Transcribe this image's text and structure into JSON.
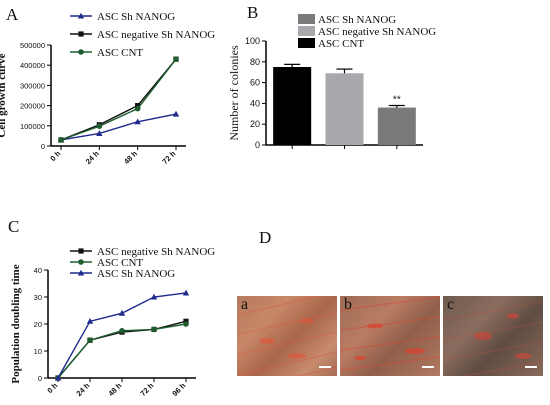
{
  "panels": {
    "a": "A",
    "b": "B",
    "c": "C",
    "d": "D"
  },
  "chart_data": [
    {
      "type": "line",
      "ylabel": "Cell growth curve",
      "ylim": [
        0,
        500000
      ],
      "yticks": [
        "0",
        "100000",
        "200000",
        "300000",
        "400000",
        "500000"
      ],
      "categories": [
        "0 h",
        "24 h",
        "48 h",
        "72 h"
      ],
      "legend_position": "top",
      "series": [
        {
          "name": "ASC Sh NANOG",
          "color": "#1f2a8c",
          "marker": "triangle",
          "values": [
            30000,
            62000,
            120000,
            158000
          ]
        },
        {
          "name": "ASC negative Sh NANOG",
          "color": "#111111",
          "marker": "square",
          "values": [
            30000,
            105000,
            200000,
            430000
          ]
        },
        {
          "name": "ASC CNT",
          "color": "#1e5e2e",
          "marker": "circle",
          "values": [
            30000,
            98000,
            185000,
            430000
          ]
        }
      ]
    },
    {
      "type": "bar",
      "ylabel": "Number of colonies",
      "ylim": [
        0,
        100
      ],
      "yticks": [
        "0",
        "20",
        "40",
        "60",
        "80",
        "100"
      ],
      "categories": [
        "ASC CNT",
        "ASC negative Sh NANOG",
        "ASC Sh NANOG"
      ],
      "values": [
        75,
        69,
        36
      ],
      "errors": [
        2.5,
        4,
        2
      ],
      "colors": [
        "#000000",
        "#a9a9ad",
        "#7a7a7a"
      ],
      "annotations": [
        "",
        "",
        "**"
      ],
      "legend_order": [
        "ASC Sh NANOG",
        "ASC negative Sh NANOG",
        "ASC CNT"
      ],
      "legend_colors": [
        "#7a7a7a",
        "#a9a9ad",
        "#000000"
      ]
    },
    {
      "type": "line",
      "ylabel": "Population doubling time",
      "ylim": [
        0,
        40
      ],
      "yticks": [
        "0",
        "10",
        "20",
        "30",
        "40"
      ],
      "categories": [
        "0 h",
        "24 h",
        "48 h",
        "72 h",
        "96 h"
      ],
      "legend_position": "top",
      "series": [
        {
          "name": "ASC negative Sh NANOG",
          "color": "#111111",
          "marker": "square",
          "values": [
            0,
            14,
            17,
            18,
            21
          ]
        },
        {
          "name": "ASC CNT",
          "color": "#1e5e2e",
          "marker": "circle",
          "values": [
            0,
            14,
            17.5,
            18,
            20
          ]
        },
        {
          "name": "ASC Sh NANOG",
          "color": "#1f2a8c",
          "marker": "triangle",
          "values": [
            0,
            21,
            24,
            30,
            31.5
          ]
        }
      ]
    }
  ],
  "micrographs": [
    {
      "label": "a"
    },
    {
      "label": "b"
    },
    {
      "label": "c"
    }
  ]
}
